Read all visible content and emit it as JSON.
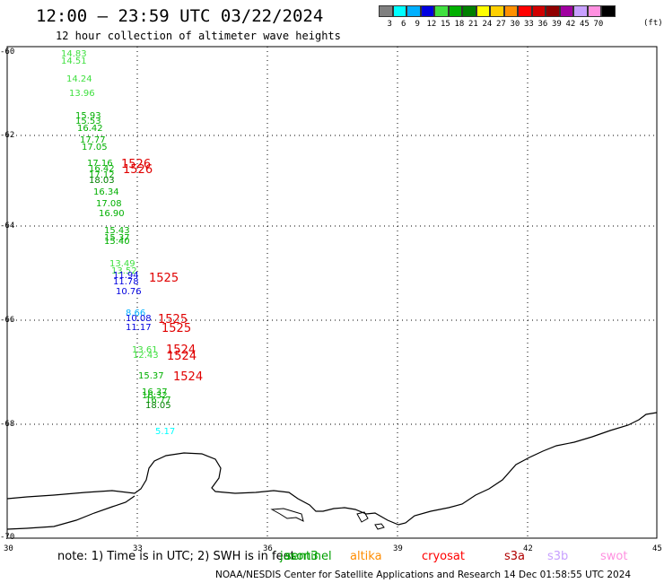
{
  "header": {
    "title": "12:00 – 23:59 UTC 03/22/2024",
    "subtitle": "12 hour collection of altimeter wave heights"
  },
  "color_scale": {
    "unit": "(ft)",
    "labels": [
      "3",
      "6",
      "9",
      "12",
      "15",
      "18",
      "21",
      "24",
      "27",
      "30",
      "33",
      "36",
      "39",
      "42",
      "45",
      "70"
    ],
    "colors": [
      "#808080",
      "#00ffff",
      "#00b0ff",
      "#0000e0",
      "#40e040",
      "#00b000",
      "#008000",
      "#ffff00",
      "#ffd000",
      "#ff9000",
      "#ff0000",
      "#d00000",
      "#900000",
      "#a000a0",
      "#c8a0ff",
      "#ff90e0",
      "#000000"
    ]
  },
  "axes": {
    "y_labels": [
      "-60",
      "-62",
      "-64",
      "-66",
      "-68",
      "-70"
    ],
    "x_labels": [
      "30",
      "33",
      "36",
      "39",
      "42",
      "45"
    ]
  },
  "wave_heights": [
    {
      "text": "14.83",
      "color": "#40e040"
    },
    {
      "text": "14.51",
      "color": "#40e040"
    },
    {
      "text": "14.24",
      "color": "#40e040"
    },
    {
      "text": "13.96",
      "color": "#40e040"
    },
    {
      "text": "15.93",
      "color": "#00b000"
    },
    {
      "text": "15.53",
      "color": "#00b000"
    },
    {
      "text": "16.42",
      "color": "#00b000"
    },
    {
      "text": "17.77",
      "color": "#00b000"
    },
    {
      "text": "17.05",
      "color": "#00b000"
    },
    {
      "text": "17.16",
      "color": "#00b000"
    },
    {
      "text": "16.42",
      "color": "#00b000"
    },
    {
      "text": "17.12",
      "color": "#00b000"
    },
    {
      "text": "18.03",
      "color": "#008000"
    },
    {
      "text": "16.34",
      "color": "#00b000"
    },
    {
      "text": "17.08",
      "color": "#00b000"
    },
    {
      "text": "16.90",
      "color": "#00b000"
    },
    {
      "text": "15.43",
      "color": "#00b000"
    },
    {
      "text": "15.37",
      "color": "#00b000"
    },
    {
      "text": "15.40",
      "color": "#00b000"
    },
    {
      "text": "13.49",
      "color": "#40e040"
    },
    {
      "text": "13.52",
      "color": "#40e040"
    },
    {
      "text": "11.94",
      "color": "#0000e0"
    },
    {
      "text": "11.78",
      "color": "#0000e0"
    },
    {
      "text": "10.76",
      "color": "#0000e0"
    },
    {
      "text": "8.66",
      "color": "#00b0ff"
    },
    {
      "text": "10.08",
      "color": "#0000e0"
    },
    {
      "text": "11.17",
      "color": "#0000e0"
    },
    {
      "text": "13.61",
      "color": "#40e040"
    },
    {
      "text": "12.43",
      "color": "#40e040"
    },
    {
      "text": "15.37",
      "color": "#00b000"
    },
    {
      "text": "16.37",
      "color": "#00b000"
    },
    {
      "text": "16.32",
      "color": "#00b000"
    },
    {
      "text": "16.77",
      "color": "#00b000"
    },
    {
      "text": "18.05",
      "color": "#008000"
    },
    {
      "text": "5.17",
      "color": "#00ffff"
    }
  ],
  "satellite_times": [
    {
      "text": "1526",
      "color": "#e00000"
    },
    {
      "text": "1526",
      "color": "#e00000"
    },
    {
      "text": "1525",
      "color": "#e00000"
    },
    {
      "text": "1525",
      "color": "#e00000"
    },
    {
      "text": "1525",
      "color": "#e00000"
    },
    {
      "text": "1524",
      "color": "#e00000"
    },
    {
      "text": "1524",
      "color": "#e00000"
    },
    {
      "text": "1524",
      "color": "#e00000"
    }
  ],
  "missions": [
    {
      "text": "jason3",
      "color": "#00a000"
    },
    {
      "text": "sentinel",
      "color": "#00a000"
    },
    {
      "text": "altika",
      "color": "#ff8c00"
    },
    {
      "text": "cryosat",
      "color": "#ff0000"
    },
    {
      "text": "s3a",
      "color": "#b00000"
    },
    {
      "text": "s3b",
      "color": "#c8a0ff"
    },
    {
      "text": "swot",
      "color": "#ff90e0"
    }
  ],
  "note": "note:  1) Time is in UTC; 2) SWH is in feet",
  "footer": "NOAA/NESDIS Center for Satellite Applications and Research    14 Dec 01:58:55 UTC 2024"
}
